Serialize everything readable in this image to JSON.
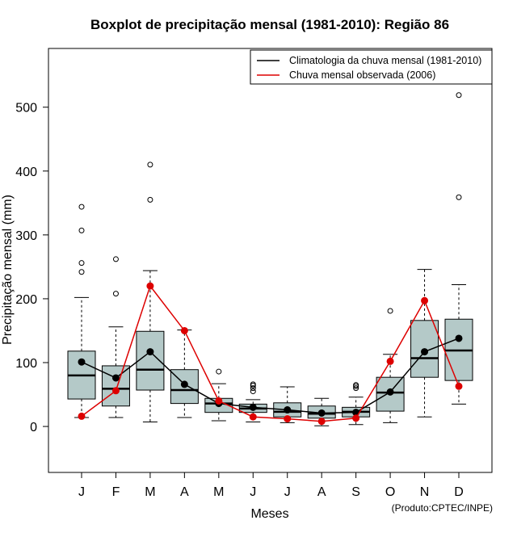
{
  "chart_data": {
    "type": "boxplot",
    "title": "Boxplot de precipitação mensal (1981-2010): Região 86",
    "xlabel": "Meses",
    "ylabel": "Precipitação mensal (mm)",
    "ylim": [
      -72,
      592
    ],
    "yticks": [
      0,
      100,
      200,
      300,
      400,
      500
    ],
    "categories": [
      "J",
      "F",
      "M",
      "A",
      "M",
      "J",
      "J",
      "A",
      "S",
      "O",
      "N",
      "D"
    ],
    "boxes": [
      {
        "whisker_low": 14,
        "q1": 43,
        "median": 80,
        "q3": 118,
        "whisker_high": 202,
        "outliers": [
          242,
          256,
          307,
          344
        ]
      },
      {
        "whisker_low": 14,
        "q1": 32,
        "median": 59,
        "q3": 95,
        "whisker_high": 156,
        "outliers": [
          208,
          262
        ]
      },
      {
        "whisker_low": 7,
        "q1": 57,
        "median": 89,
        "q3": 149,
        "whisker_high": 244,
        "outliers": [
          355,
          410
        ]
      },
      {
        "whisker_low": 14,
        "q1": 36,
        "median": 57,
        "q3": 89,
        "whisker_high": 151,
        "outliers": []
      },
      {
        "whisker_low": 9,
        "q1": 22,
        "median": 36,
        "q3": 44,
        "whisker_high": 67,
        "outliers": [
          86
        ]
      },
      {
        "whisker_low": 7,
        "q1": 22,
        "median": 28,
        "q3": 35,
        "whisker_high": 42,
        "outliers": [
          55,
          60,
          64,
          66
        ]
      },
      {
        "whisker_low": 6,
        "q1": 15,
        "median": 23,
        "q3": 37,
        "whisker_high": 62,
        "outliers": []
      },
      {
        "whisker_low": 1,
        "q1": 13,
        "median": 20,
        "q3": 32,
        "whisker_high": 44,
        "outliers": []
      },
      {
        "whisker_low": 3,
        "q1": 15,
        "median": 23,
        "q3": 30,
        "whisker_high": 46,
        "outliers": [
          60,
          63,
          65
        ]
      },
      {
        "whisker_low": 6,
        "q1": 24,
        "median": 53,
        "q3": 77,
        "whisker_high": 113,
        "outliers": [
          181
        ]
      },
      {
        "whisker_low": 15,
        "q1": 77,
        "median": 107,
        "q3": 166,
        "whisker_high": 246,
        "outliers": []
      },
      {
        "whisker_low": 35,
        "q1": 72,
        "median": 119,
        "q3": 168,
        "whisker_high": 222,
        "outliers": [
          359,
          519
        ]
      }
    ],
    "series": [
      {
        "name": "Climatologia da chuva mensal (1981-2010)",
        "color": "#000000",
        "values": [
          101,
          76,
          117,
          66,
          36,
          30,
          26,
          21,
          22,
          54,
          117,
          138
        ]
      },
      {
        "name": "Chuva mensal observada (2006)",
        "color": "#dd0000",
        "values": [
          16,
          56,
          220,
          150,
          40,
          15,
          12,
          8,
          13,
          102,
          197,
          63
        ]
      }
    ],
    "legend_position": "top-right",
    "box_color": "#b4c9c8",
    "credit": "(Produto:CPTEC/INPE)"
  }
}
